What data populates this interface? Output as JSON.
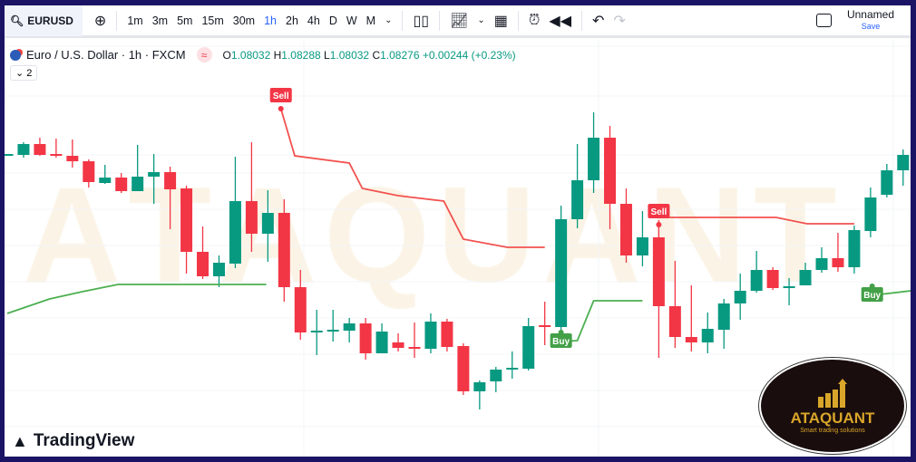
{
  "toolbar": {
    "symbol": "EURUSD",
    "timeframes": [
      "1m",
      "3m",
      "5m",
      "15m",
      "30m",
      "1h",
      "2h",
      "4h",
      "D",
      "W",
      "M"
    ],
    "active_timeframe": "1h",
    "layout_name": "Unnamed",
    "save_label": "Save"
  },
  "legend": {
    "title": "Euro / U.S. Dollar · 1h · FXCM",
    "o_label": "O",
    "o": "1.08032",
    "h_label": "H",
    "h": "1.08288",
    "l_label": "L",
    "l": "1.08032",
    "c_label": "C",
    "c": "1.08276",
    "change": "+0.00244 (+0.23%)",
    "collapse_label": "2"
  },
  "watermark": "ATAQUANT",
  "branding": {
    "tradingview": "TradingView",
    "logo_name": "ATAQUANT",
    "logo_tagline": "Smart trading solutions"
  },
  "colors": {
    "up": "#089981",
    "down": "#f23645",
    "sell_line": "#f2524f",
    "buy_line": "#4caf50",
    "frame": "#1b1464"
  },
  "chart_data": {
    "type": "candlestick",
    "candles": [
      [
        1.0829,
        1.083,
        1.0828,
        1.083
      ],
      [
        1.0829,
        1.0843,
        1.0826,
        1.0841
      ],
      [
        1.0841,
        1.0848,
        1.0828,
        1.0829
      ],
      [
        1.083,
        1.0847,
        1.0826,
        1.0829
      ],
      [
        1.0828,
        1.0846,
        1.0815,
        1.0822
      ],
      [
        1.0822,
        1.0824,
        1.0793,
        1.0799
      ],
      [
        1.0798,
        1.0818,
        1.0797,
        1.0804
      ],
      [
        1.0804,
        1.0809,
        1.0787,
        1.0789
      ],
      [
        1.0789,
        1.084,
        1.0789,
        1.0805
      ],
      [
        1.0805,
        1.083,
        1.0775,
        1.081
      ],
      [
        1.081,
        1.0816,
        1.0747,
        1.0791
      ],
      [
        1.0792,
        1.0795,
        1.0698,
        1.0722
      ],
      [
        1.0722,
        1.075,
        1.0692,
        1.0695
      ],
      [
        1.0695,
        1.0718,
        1.0683,
        1.071
      ],
      [
        1.0709,
        1.0827,
        1.0704,
        1.0778
      ],
      [
        1.0778,
        1.0843,
        1.0722,
        1.0742
      ],
      [
        1.0742,
        1.079,
        1.0711,
        1.0765
      ],
      [
        1.0765,
        1.078,
        1.0667,
        1.0683
      ],
      [
        1.0683,
        1.0702,
        1.0625,
        1.0633
      ],
      [
        1.0634,
        1.0658,
        1.0608,
        1.0635
      ],
      [
        1.0635,
        1.0658,
        1.0623,
        1.0636
      ],
      [
        1.0635,
        1.0649,
        1.0622,
        1.0643
      ],
      [
        1.0643,
        1.0649,
        1.0603,
        1.061
      ],
      [
        1.061,
        1.0643,
        1.061,
        1.0634
      ],
      [
        1.0622,
        1.0632,
        1.0612,
        1.0616
      ],
      [
        1.0617,
        1.0644,
        1.0605,
        1.0616
      ],
      [
        1.0615,
        1.0654,
        1.061,
        1.0645
      ],
      [
        1.0645,
        1.0648,
        1.0612,
        1.0617
      ],
      [
        1.0618,
        1.0621,
        1.0564,
        1.0568
      ],
      [
        1.0568,
        1.058,
        1.0548,
        1.0578
      ],
      [
        1.0579,
        1.0595,
        1.0567,
        1.0592
      ],
      [
        1.0592,
        1.0612,
        1.0582,
        1.0594
      ],
      [
        1.0593,
        1.0649,
        1.0591,
        1.064
      ],
      [
        1.0641,
        1.0667,
        1.0619,
        1.064
      ],
      [
        1.0639,
        1.0773,
        1.0619,
        1.0758
      ],
      [
        1.0758,
        1.0841,
        1.0748,
        1.0801
      ],
      [
        1.0801,
        1.0876,
        1.0787,
        1.0848
      ],
      [
        1.0848,
        1.0861,
        1.0747,
        1.0775
      ],
      [
        1.0775,
        1.0792,
        1.071,
        1.0718
      ],
      [
        1.0718,
        1.0767,
        1.0706,
        1.0738
      ],
      [
        1.0738,
        1.0757,
        1.0605,
        1.0662
      ],
      [
        1.0662,
        1.0712,
        1.0616,
        1.0628
      ],
      [
        1.0628,
        1.0685,
        1.0612,
        1.0622
      ],
      [
        1.0622,
        1.0655,
        1.061,
        1.0637
      ],
      [
        1.0636,
        1.067,
        1.0615,
        1.0665
      ],
      [
        1.0665,
        1.0698,
        1.0647,
        1.0679
      ],
      [
        1.0679,
        1.0723,
        1.0677,
        1.0702
      ],
      [
        1.0702,
        1.0705,
        1.068,
        1.0682
      ],
      [
        1.0683,
        1.0693,
        1.0663,
        1.0684
      ],
      [
        1.0685,
        1.071,
        1.0685,
        1.0702
      ],
      [
        1.0702,
        1.0727,
        1.0699,
        1.0715
      ],
      [
        1.0715,
        1.0743,
        1.07,
        1.0705
      ],
      [
        1.0705,
        1.0751,
        1.0698,
        1.0746
      ],
      [
        1.0745,
        1.0793,
        1.0738,
        1.0782
      ],
      [
        1.0785,
        1.0819,
        1.0782,
        1.0812
      ],
      [
        1.0812,
        1.0835,
        1.0795,
        1.0829
      ]
    ],
    "sell_lines": [
      [
        [
          16.8,
          1.088
        ],
        [
          17.65,
          1.0828
        ],
        [
          21,
          1.082
        ],
        [
          21.8,
          1.0792
        ],
        [
          24,
          1.0784
        ],
        [
          26.8,
          1.0778
        ],
        [
          28,
          1.0736
        ],
        [
          30.7,
          1.0727
        ],
        [
          33,
          1.0727
        ]
      ],
      [
        [
          40,
          1.076
        ],
        [
          47.2,
          1.076
        ],
        [
          49.1,
          1.0753
        ],
        [
          52,
          1.0753
        ]
      ]
    ],
    "buy_lines": [
      [
        [
          0,
          1.0654
        ],
        [
          2.6,
          1.067
        ],
        [
          4.6,
          1.0678
        ],
        [
          6.8,
          1.0686
        ],
        [
          15.9,
          1.0686
        ]
      ],
      [
        [
          34,
          1.0623
        ],
        [
          35,
          1.0624
        ],
        [
          36,
          1.0668
        ],
        [
          39,
          1.0668
        ]
      ],
      [
        [
          53.1,
          1.0674
        ],
        [
          55.5,
          1.0679
        ]
      ]
    ],
    "signals": [
      {
        "type": "sell",
        "label": "Sell",
        "index": 16.8,
        "price": 1.0888
      },
      {
        "type": "sell",
        "label": "Sell",
        "index": 40,
        "price": 1.076
      },
      {
        "type": "buy",
        "label": "Buy",
        "index": 34,
        "price": 1.0623
      },
      {
        "type": "buy",
        "label": "Buy",
        "index": 53.1,
        "price": 1.0674
      }
    ]
  }
}
